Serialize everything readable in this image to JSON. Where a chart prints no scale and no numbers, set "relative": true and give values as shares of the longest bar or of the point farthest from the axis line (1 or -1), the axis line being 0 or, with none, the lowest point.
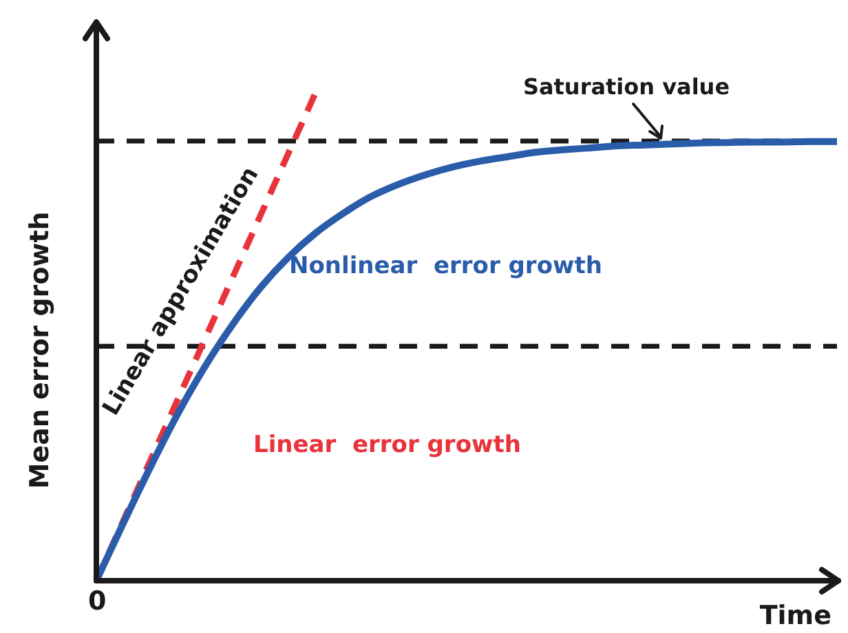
{
  "chart_data": {
    "type": "line",
    "relative": true,
    "xlabel": "Time",
    "ylabel": "Mean error growth",
    "legend": false,
    "marker": "none",
    "categories": [
      null,
      null,
      null,
      null,
      null,
      null,
      null,
      null,
      null,
      null,
      null,
      null,
      null,
      null,
      null,
      null,
      null,
      null,
      null,
      null,
      null,
      null,
      null,
      null,
      null,
      null,
      null,
      null
    ],
    "series": [
      {
        "color": "#2a5caa",
        "line_style": "solid",
        "values": [
          0,
          0.12,
          0.236,
          0.345,
          0.442,
          0.527,
          0.601,
          0.662,
          0.712,
          0.752,
          0.786,
          0.811,
          0.831,
          0.847,
          0.859,
          0.868,
          0.877,
          0.882,
          0.886,
          0.89,
          0.892,
          0.894,
          0.896,
          0.897,
          0.898,
          0.898,
          0.899,
          0.899
        ]
      },
      {
        "color": "#e8333a",
        "line_style": "dashed",
        "values": [
          0,
          0.125,
          0.25,
          0.375,
          0.5,
          0.625,
          0.75,
          0.875,
          1,
          null,
          null,
          null,
          null,
          null,
          null,
          null,
          null,
          null,
          null,
          null,
          null,
          null,
          null,
          null,
          null,
          null,
          null,
          null
        ]
      }
    ],
    "ref_lines": [
      {
        "axis": "y",
        "value": 0.9,
        "label": "Saturation value",
        "color": "#1a1a1a",
        "line_style": "dashed"
      },
      {
        "axis": "y",
        "value": 0.48,
        "color": "#1a1a1a",
        "line_style": "dashed"
      }
    ],
    "annotations": [
      "Nonlinear  error growth",
      "Linear  error growth",
      "Linear approximation",
      "0"
    ]
  }
}
